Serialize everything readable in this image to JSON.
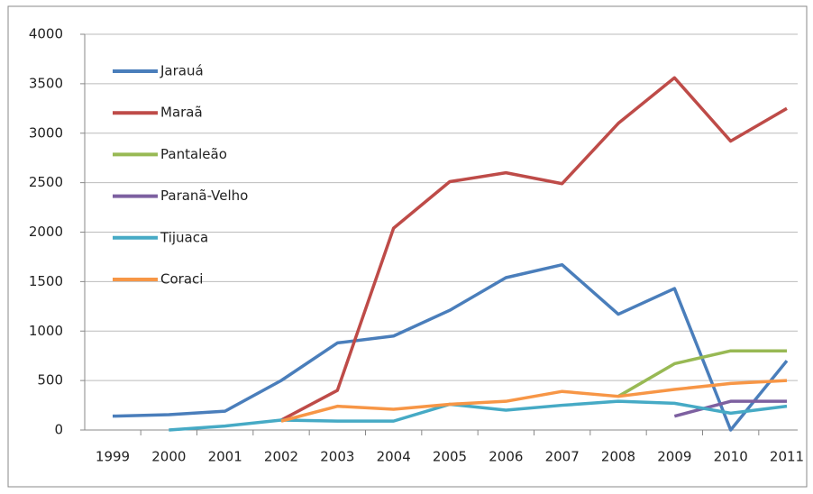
{
  "chart_data": {
    "type": "line",
    "categories": [
      "1999",
      "2000",
      "2001",
      "2002",
      "2003",
      "2004",
      "2005",
      "2006",
      "2007",
      "2008",
      "2009",
      "2010",
      "2011"
    ],
    "series": [
      {
        "name": "Jarauá",
        "color": "#4a7ebb",
        "values": [
          140,
          155,
          190,
          500,
          880,
          950,
          1210,
          1540,
          1670,
          1170,
          1430,
          0,
          700
        ]
      },
      {
        "name": "Maraã",
        "color": "#be4b48",
        "values": [
          null,
          null,
          null,
          100,
          400,
          2040,
          2510,
          2600,
          2490,
          3100,
          3560,
          2920,
          3250
        ]
      },
      {
        "name": "Pantaleão",
        "color": "#98b954",
        "values": [
          null,
          null,
          null,
          null,
          null,
          null,
          null,
          null,
          null,
          340,
          670,
          800,
          800
        ]
      },
      {
        "name": "Paranã-Velho",
        "color": "#7d60a0",
        "values": [
          null,
          null,
          null,
          null,
          null,
          null,
          null,
          null,
          null,
          null,
          140,
          290,
          290
        ]
      },
      {
        "name": "Tijuaca",
        "color": "#46aac5",
        "values": [
          null,
          0,
          40,
          100,
          90,
          90,
          260,
          200,
          250,
          290,
          270,
          170,
          240
        ]
      },
      {
        "name": "Coraci",
        "color": "#f79646",
        "values": [
          null,
          null,
          null,
          90,
          240,
          210,
          260,
          290,
          390,
          340,
          410,
          470,
          500
        ]
      }
    ],
    "ylim": [
      0,
      4000
    ],
    "yticks": [
      0,
      500,
      1000,
      1500,
      2000,
      2500,
      3000,
      3500,
      4000
    ],
    "grid": true,
    "legend": "upper left"
  }
}
